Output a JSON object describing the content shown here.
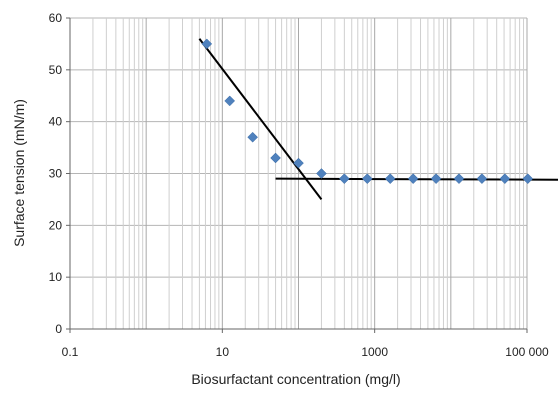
{
  "chart_data": {
    "type": "scatter",
    "title": "",
    "xlabel": "Biosurfactant concentration (mg/l)",
    "ylabel": "Surface tension (mN/m)",
    "x_scale": "log",
    "xlim": [
      0.1,
      100000
    ],
    "ylim": [
      0,
      60
    ],
    "x_ticks": [
      0.1,
      10,
      1000,
      100000
    ],
    "x_tick_labels": [
      "0.1",
      "10",
      "1000",
      "100 000"
    ],
    "y_ticks": [
      0,
      10,
      20,
      30,
      40,
      50,
      60
    ],
    "y_tick_labels": [
      "0",
      "10",
      "20",
      "30",
      "40",
      "50",
      "60"
    ],
    "grid": true,
    "legend": "none",
    "series": [
      {
        "marker": "diamond",
        "color": "#4F81BD",
        "x": [
          6.25,
          12.5,
          25,
          50,
          100,
          200,
          400,
          800,
          1600,
          3200,
          6400,
          12800,
          25600,
          51200,
          102400
        ],
        "y": [
          55,
          44,
          37,
          33,
          32,
          30,
          29,
          29,
          29,
          29,
          29,
          29,
          29,
          29,
          29
        ]
      }
    ],
    "trend_lines": [
      {
        "color": "#000000",
        "x": [
          5,
          200
        ],
        "y": [
          56,
          25
        ]
      },
      {
        "color": "#000000",
        "x": [
          50,
          300000
        ],
        "y": [
          29,
          28.8
        ]
      }
    ]
  }
}
